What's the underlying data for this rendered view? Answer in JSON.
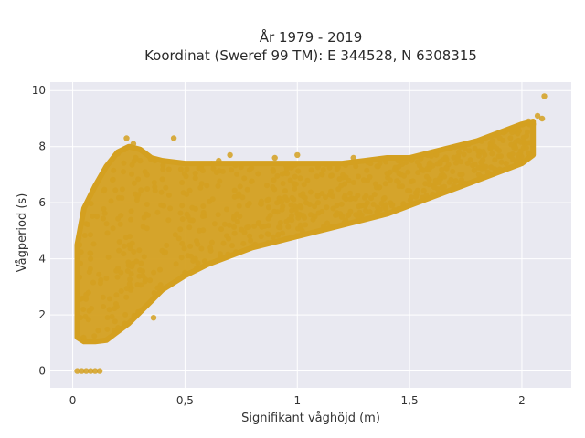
{
  "chart_data": {
    "type": "scatter",
    "title": [
      "År 1979 - 2019",
      "Koordinat (Sweref 99 TM): E 344528, N 6308315"
    ],
    "xlabel": "Signifikant våghöjd (m)",
    "ylabel": "Vågperiod (s)",
    "xlim": [
      -0.1,
      2.22
    ],
    "ylim": [
      -0.6,
      10.3
    ],
    "xticks": [
      0,
      0.5,
      1,
      1.5,
      2
    ],
    "xtick_labels": [
      "0",
      "0,5",
      "1",
      "1,5",
      "2"
    ],
    "yticks": [
      0,
      2,
      4,
      6,
      8,
      10
    ],
    "ytick_labels": [
      "0",
      "2",
      "4",
      "6",
      "8",
      "10"
    ],
    "grid": true,
    "legend": "none",
    "colors": {
      "marker": "#D4A020",
      "plot_bg": "#E9E9F1",
      "grid": "#FFFFFF"
    },
    "series": [
      {
        "envelope": {
          "x": [
            0.02,
            0.05,
            0.1,
            0.15,
            0.2,
            0.25,
            0.3,
            0.35,
            0.4,
            0.5,
            0.6,
            0.7,
            0.8,
            0.9,
            1.0,
            1.1,
            1.2,
            1.3,
            1.4,
            1.5,
            1.6,
            1.7,
            1.8,
            1.9,
            2.0,
            2.05
          ],
          "y_min": [
            1.2,
            1.05,
            1.05,
            1.1,
            1.4,
            1.7,
            2.1,
            2.5,
            2.9,
            3.4,
            3.8,
            4.1,
            4.4,
            4.6,
            4.8,
            5.0,
            5.2,
            5.4,
            5.6,
            5.9,
            6.2,
            6.5,
            6.8,
            7.1,
            7.4,
            7.7
          ],
          "y_max": [
            4.5,
            5.8,
            6.6,
            7.3,
            7.8,
            8.0,
            7.9,
            7.6,
            7.5,
            7.4,
            7.4,
            7.4,
            7.4,
            7.4,
            7.4,
            7.4,
            7.4,
            7.5,
            7.6,
            7.6,
            7.8,
            8.0,
            8.2,
            8.5,
            8.8,
            8.9
          ]
        },
        "x": [
          0.02,
          0.04,
          0.06,
          0.08,
          0.1,
          0.12,
          0.24,
          0.27,
          0.23,
          0.3,
          0.28,
          0.45,
          0.65,
          0.7,
          0.9,
          1.0,
          1.25,
          1.45,
          1.58,
          1.72,
          1.87,
          1.95,
          2.03,
          2.05,
          2.07,
          2.09,
          2.1,
          0.03,
          0.36,
          0.5
        ],
        "y": [
          0,
          0,
          0,
          0,
          0,
          0,
          8.3,
          8.1,
          7.9,
          7.5,
          7.6,
          8.3,
          7.5,
          7.7,
          7.6,
          7.7,
          7.6,
          7.5,
          7.7,
          7.8,
          8.2,
          8.6,
          8.9,
          8.8,
          9.1,
          9.0,
          9.8,
          4.5,
          1.9,
          3.5
        ]
      }
    ]
  }
}
